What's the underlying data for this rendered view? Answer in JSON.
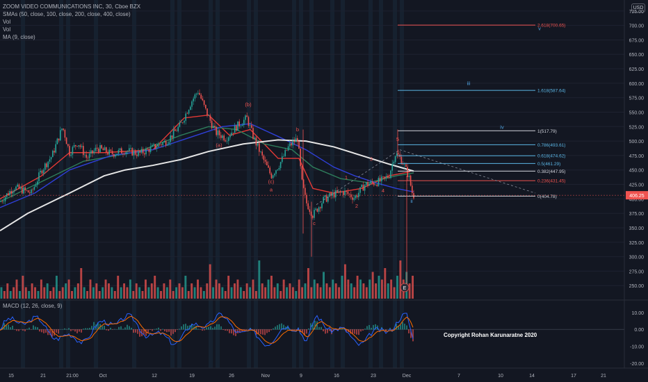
{
  "header": {
    "title": "ZOOM VIDEO COMMUNICATIONS INC, 30, Cboe BZX",
    "indicators": [
      "SMAs (50, close, 100, close, 200, close, 400, close)",
      "Vol",
      "Vol",
      "MA (9, close)"
    ],
    "currency": "USD"
  },
  "macd_title": "MACD (12, 26, close, 9)",
  "copyright": "Copyright Rohan Karunaratne 2020",
  "colors": {
    "background": "#131722",
    "grid": "#1e2230",
    "candle_up": "#26a69a",
    "candle_down": "#ef5350",
    "sma_red": "#e53935",
    "sma_green": "#2e7d5b",
    "sma_blue": "#2f40d8",
    "sma_white": "#e6e6e6",
    "fib_blue": "#5bb7e6",
    "fib_red": "#ef5350",
    "fib_white": "#d1d4dc",
    "wave_red": "#ef5350",
    "wave_blue": "#4fa3e0",
    "vline": "#d1d4dc",
    "price_tag": "#ef5350"
  },
  "chart_data": [
    {
      "type": "candlestick",
      "symbol": "ZM",
      "timeframe": "30",
      "x_tick_labels": [
        "15",
        "21",
        "21:00",
        "Oct",
        "12",
        "19",
        "26",
        "Nov",
        "9",
        "16",
        "23",
        "Dec",
        "7",
        "10",
        "14",
        "17",
        "21"
      ],
      "ylim": [
        225,
        738
      ],
      "y_tick_labels": [
        "725.00",
        "700.00",
        "675.00",
        "650.00",
        "625.00",
        "600.00",
        "575.00",
        "550.00",
        "525.00",
        "500.00",
        "475.00",
        "450.00",
        "425.00",
        "400.00",
        "375.00",
        "350.00",
        "325.00",
        "300.00",
        "275.00",
        "250.00"
      ],
      "last_price": "406.25",
      "price_path": [
        {
          "x": 0,
          "y": 395
        },
        {
          "x": 20,
          "y": 420
        },
        {
          "x": 45,
          "y": 410
        },
        {
          "x": 60,
          "y": 450
        },
        {
          "x": 75,
          "y": 475
        },
        {
          "x": 90,
          "y": 525
        },
        {
          "x": 100,
          "y": 480
        },
        {
          "x": 112,
          "y": 498
        },
        {
          "x": 125,
          "y": 470
        },
        {
          "x": 140,
          "y": 488
        },
        {
          "x": 160,
          "y": 478
        },
        {
          "x": 180,
          "y": 484
        },
        {
          "x": 200,
          "y": 478
        },
        {
          "x": 222,
          "y": 490
        },
        {
          "x": 240,
          "y": 500
        },
        {
          "x": 260,
          "y": 528
        },
        {
          "x": 275,
          "y": 568
        },
        {
          "x": 285,
          "y": 587
        },
        {
          "x": 295,
          "y": 555
        },
        {
          "x": 310,
          "y": 515
        },
        {
          "x": 325,
          "y": 505
        },
        {
          "x": 340,
          "y": 525
        },
        {
          "x": 355,
          "y": 540
        },
        {
          "x": 365,
          "y": 505
        },
        {
          "x": 378,
          "y": 470
        },
        {
          "x": 390,
          "y": 440
        },
        {
          "x": 402,
          "y": 460
        },
        {
          "x": 415,
          "y": 490
        },
        {
          "x": 428,
          "y": 505
        },
        {
          "x": 434,
          "y": 430
        },
        {
          "x": 440,
          "y": 395
        },
        {
          "x": 450,
          "y": 372
        },
        {
          "x": 465,
          "y": 398
        },
        {
          "x": 480,
          "y": 408
        },
        {
          "x": 495,
          "y": 412
        },
        {
          "x": 510,
          "y": 402
        },
        {
          "x": 525,
          "y": 425
        },
        {
          "x": 540,
          "y": 428
        },
        {
          "x": 552,
          "y": 433
        },
        {
          "x": 560,
          "y": 442
        },
        {
          "x": 568,
          "y": 478
        },
        {
          "x": 573,
          "y": 475
        },
        {
          "x": 580,
          "y": 462
        },
        {
          "x": 588,
          "y": 438
        },
        {
          "x": 593,
          "y": 410
        },
        {
          "x": 596,
          "y": 404
        }
      ],
      "moving_averages": [
        {
          "label": "SMA 50",
          "color": "#e53935",
          "points": [
            {
              "x": 0,
              "y": 400
            },
            {
              "x": 60,
              "y": 440
            },
            {
              "x": 100,
              "y": 480
            },
            {
              "x": 150,
              "y": 480
            },
            {
              "x": 220,
              "y": 485
            },
            {
              "x": 265,
              "y": 540
            },
            {
              "x": 300,
              "y": 545
            },
            {
              "x": 330,
              "y": 510
            },
            {
              "x": 360,
              "y": 520
            },
            {
              "x": 400,
              "y": 470
            },
            {
              "x": 430,
              "y": 470
            },
            {
              "x": 450,
              "y": 418
            },
            {
              "x": 480,
              "y": 410
            },
            {
              "x": 520,
              "y": 418
            },
            {
              "x": 560,
              "y": 440
            },
            {
              "x": 590,
              "y": 447
            }
          ]
        },
        {
          "label": "SMA 100",
          "color": "#2e7d5b",
          "points": [
            {
              "x": 0,
              "y": 395
            },
            {
              "x": 60,
              "y": 430
            },
            {
              "x": 120,
              "y": 465
            },
            {
              "x": 200,
              "y": 482
            },
            {
              "x": 260,
              "y": 510
            },
            {
              "x": 300,
              "y": 525
            },
            {
              "x": 340,
              "y": 520
            },
            {
              "x": 380,
              "y": 495
            },
            {
              "x": 420,
              "y": 485
            },
            {
              "x": 450,
              "y": 455
            },
            {
              "x": 490,
              "y": 435
            },
            {
              "x": 530,
              "y": 428
            },
            {
              "x": 570,
              "y": 440
            },
            {
              "x": 595,
              "y": 445
            }
          ]
        },
        {
          "label": "SMA 200",
          "color": "#2f40d8",
          "points": [
            {
              "x": 0,
              "y": 385
            },
            {
              "x": 50,
              "y": 410
            },
            {
              "x": 100,
              "y": 450
            },
            {
              "x": 160,
              "y": 475
            },
            {
              "x": 220,
              "y": 485
            },
            {
              "x": 270,
              "y": 505
            },
            {
              "x": 320,
              "y": 525
            },
            {
              "x": 360,
              "y": 530
            },
            {
              "x": 400,
              "y": 508
            },
            {
              "x": 440,
              "y": 485
            },
            {
              "x": 480,
              "y": 455
            },
            {
              "x": 510,
              "y": 440
            },
            {
              "x": 540,
              "y": 428
            },
            {
              "x": 570,
              "y": 418
            },
            {
              "x": 595,
              "y": 412
            }
          ]
        },
        {
          "label": "SMA 400",
          "color": "#e6e6e6",
          "points": [
            {
              "x": 0,
              "y": 345
            },
            {
              "x": 40,
              "y": 375
            },
            {
              "x": 100,
              "y": 410
            },
            {
              "x": 150,
              "y": 440
            },
            {
              "x": 180,
              "y": 450
            },
            {
              "x": 220,
              "y": 458
            },
            {
              "x": 260,
              "y": 468
            },
            {
              "x": 300,
              "y": 482
            },
            {
              "x": 350,
              "y": 495
            },
            {
              "x": 400,
              "y": 502
            },
            {
              "x": 440,
              "y": 500
            },
            {
              "x": 480,
              "y": 490
            },
            {
              "x": 520,
              "y": 475
            },
            {
              "x": 560,
              "y": 460
            },
            {
              "x": 595,
              "y": 448
            }
          ]
        }
      ],
      "fibonacci": [
        {
          "label": "2.618(700.65)",
          "price": 700.65,
          "color": "#ef5350"
        },
        {
          "label": "1.618(587.64)",
          "price": 587.64,
          "color": "#5bb7e6"
        },
        {
          "label": "1(517.79)",
          "price": 517.79,
          "color": "#d1d4dc"
        },
        {
          "label": "0.786(493.61)",
          "price": 493.61,
          "color": "#5bb7e6"
        },
        {
          "label": "0.618(474.62)",
          "price": 474.62,
          "color": "#5bb7e6"
        },
        {
          "label": "0.5(461.29)",
          "price": 461.29,
          "color": "#5bb7e6"
        },
        {
          "label": "0.382(447.95)",
          "price": 447.95,
          "color": "#d1d4dc"
        },
        {
          "label": "0.236(431.45)",
          "price": 431.45,
          "color": "#ef5350"
        },
        {
          "label": "0(404.78)",
          "price": 404.78,
          "color": "#d1d4dc"
        }
      ],
      "wave_labels": [
        {
          "text": "(b)",
          "x": 357,
          "price": 560,
          "color": "#ef5350"
        },
        {
          "text": "(a)",
          "x": 315,
          "price": 490,
          "color": "#ef5350"
        },
        {
          "text": "(c)",
          "x": 390,
          "price": 427,
          "color": "#ef5350"
        },
        {
          "text": "a",
          "x": 390,
          "price": 413,
          "color": "#ef5350"
        },
        {
          "text": "b",
          "x": 428,
          "price": 517,
          "color": "#ef5350"
        },
        {
          "text": "c",
          "x": 452,
          "price": 355,
          "color": "#ef5350"
        },
        {
          "text": "1",
          "x": 498,
          "price": 434,
          "color": "#ef5350"
        },
        {
          "text": "2",
          "x": 513,
          "price": 385,
          "color": "#ef5350"
        },
        {
          "text": "3",
          "x": 534,
          "price": 466,
          "color": "#ef5350"
        },
        {
          "text": "4",
          "x": 551,
          "price": 411,
          "color": "#ef5350"
        },
        {
          "text": "5",
          "x": 572,
          "price": 500,
          "color": "#ef5350"
        },
        {
          "text": "v",
          "x": 776,
          "price": 692,
          "color": "#4fa3e0"
        },
        {
          "text": "iii",
          "x": 674,
          "price": 597,
          "color": "#4fa3e0"
        },
        {
          "text": "iv",
          "x": 722,
          "price": 521,
          "color": "#4fa3e0"
        },
        {
          "text": "ii",
          "x": 592,
          "price": 393,
          "color": "#4fa3e0"
        }
      ]
    },
    {
      "type": "bar",
      "name": "Volume",
      "series": [
        {
          "name": "Vol",
          "values": [
            3,
            2,
            4,
            2,
            3,
            5,
            2,
            6,
            3,
            2,
            4,
            3,
            2,
            5,
            3,
            4,
            2,
            3,
            6,
            2,
            3,
            4,
            5,
            2,
            3,
            4,
            8,
            3,
            2,
            5,
            3,
            4,
            2,
            3,
            5,
            4,
            3,
            2,
            6,
            3,
            4,
            3,
            5,
            2,
            4,
            3,
            2,
            5,
            3,
            4,
            6,
            3,
            2,
            4,
            3,
            5,
            2,
            3,
            4,
            3,
            6,
            2,
            4,
            3,
            5,
            3,
            2,
            4,
            9,
            3,
            5,
            4,
            3,
            2,
            6,
            3,
            4,
            5,
            3,
            2,
            4,
            3,
            5,
            2,
            10,
            4,
            3,
            5,
            6,
            3,
            4,
            2,
            5,
            3,
            4,
            3,
            2,
            5,
            3,
            4,
            8,
            3,
            5,
            4,
            3,
            7,
            4,
            3,
            5,
            4,
            3,
            6,
            9,
            5,
            4,
            3,
            6,
            5,
            4,
            3,
            5,
            7,
            4,
            6,
            5,
            8,
            4,
            5,
            3,
            6,
            10,
            5,
            7,
            4,
            6
          ]
        }
      ]
    },
    {
      "type": "line",
      "name": "MACD",
      "y_tick_labels": [
        "10.00",
        "0.00",
        "-10.00",
        "-20.00"
      ],
      "ylim": [
        -22,
        14
      ]
    }
  ]
}
